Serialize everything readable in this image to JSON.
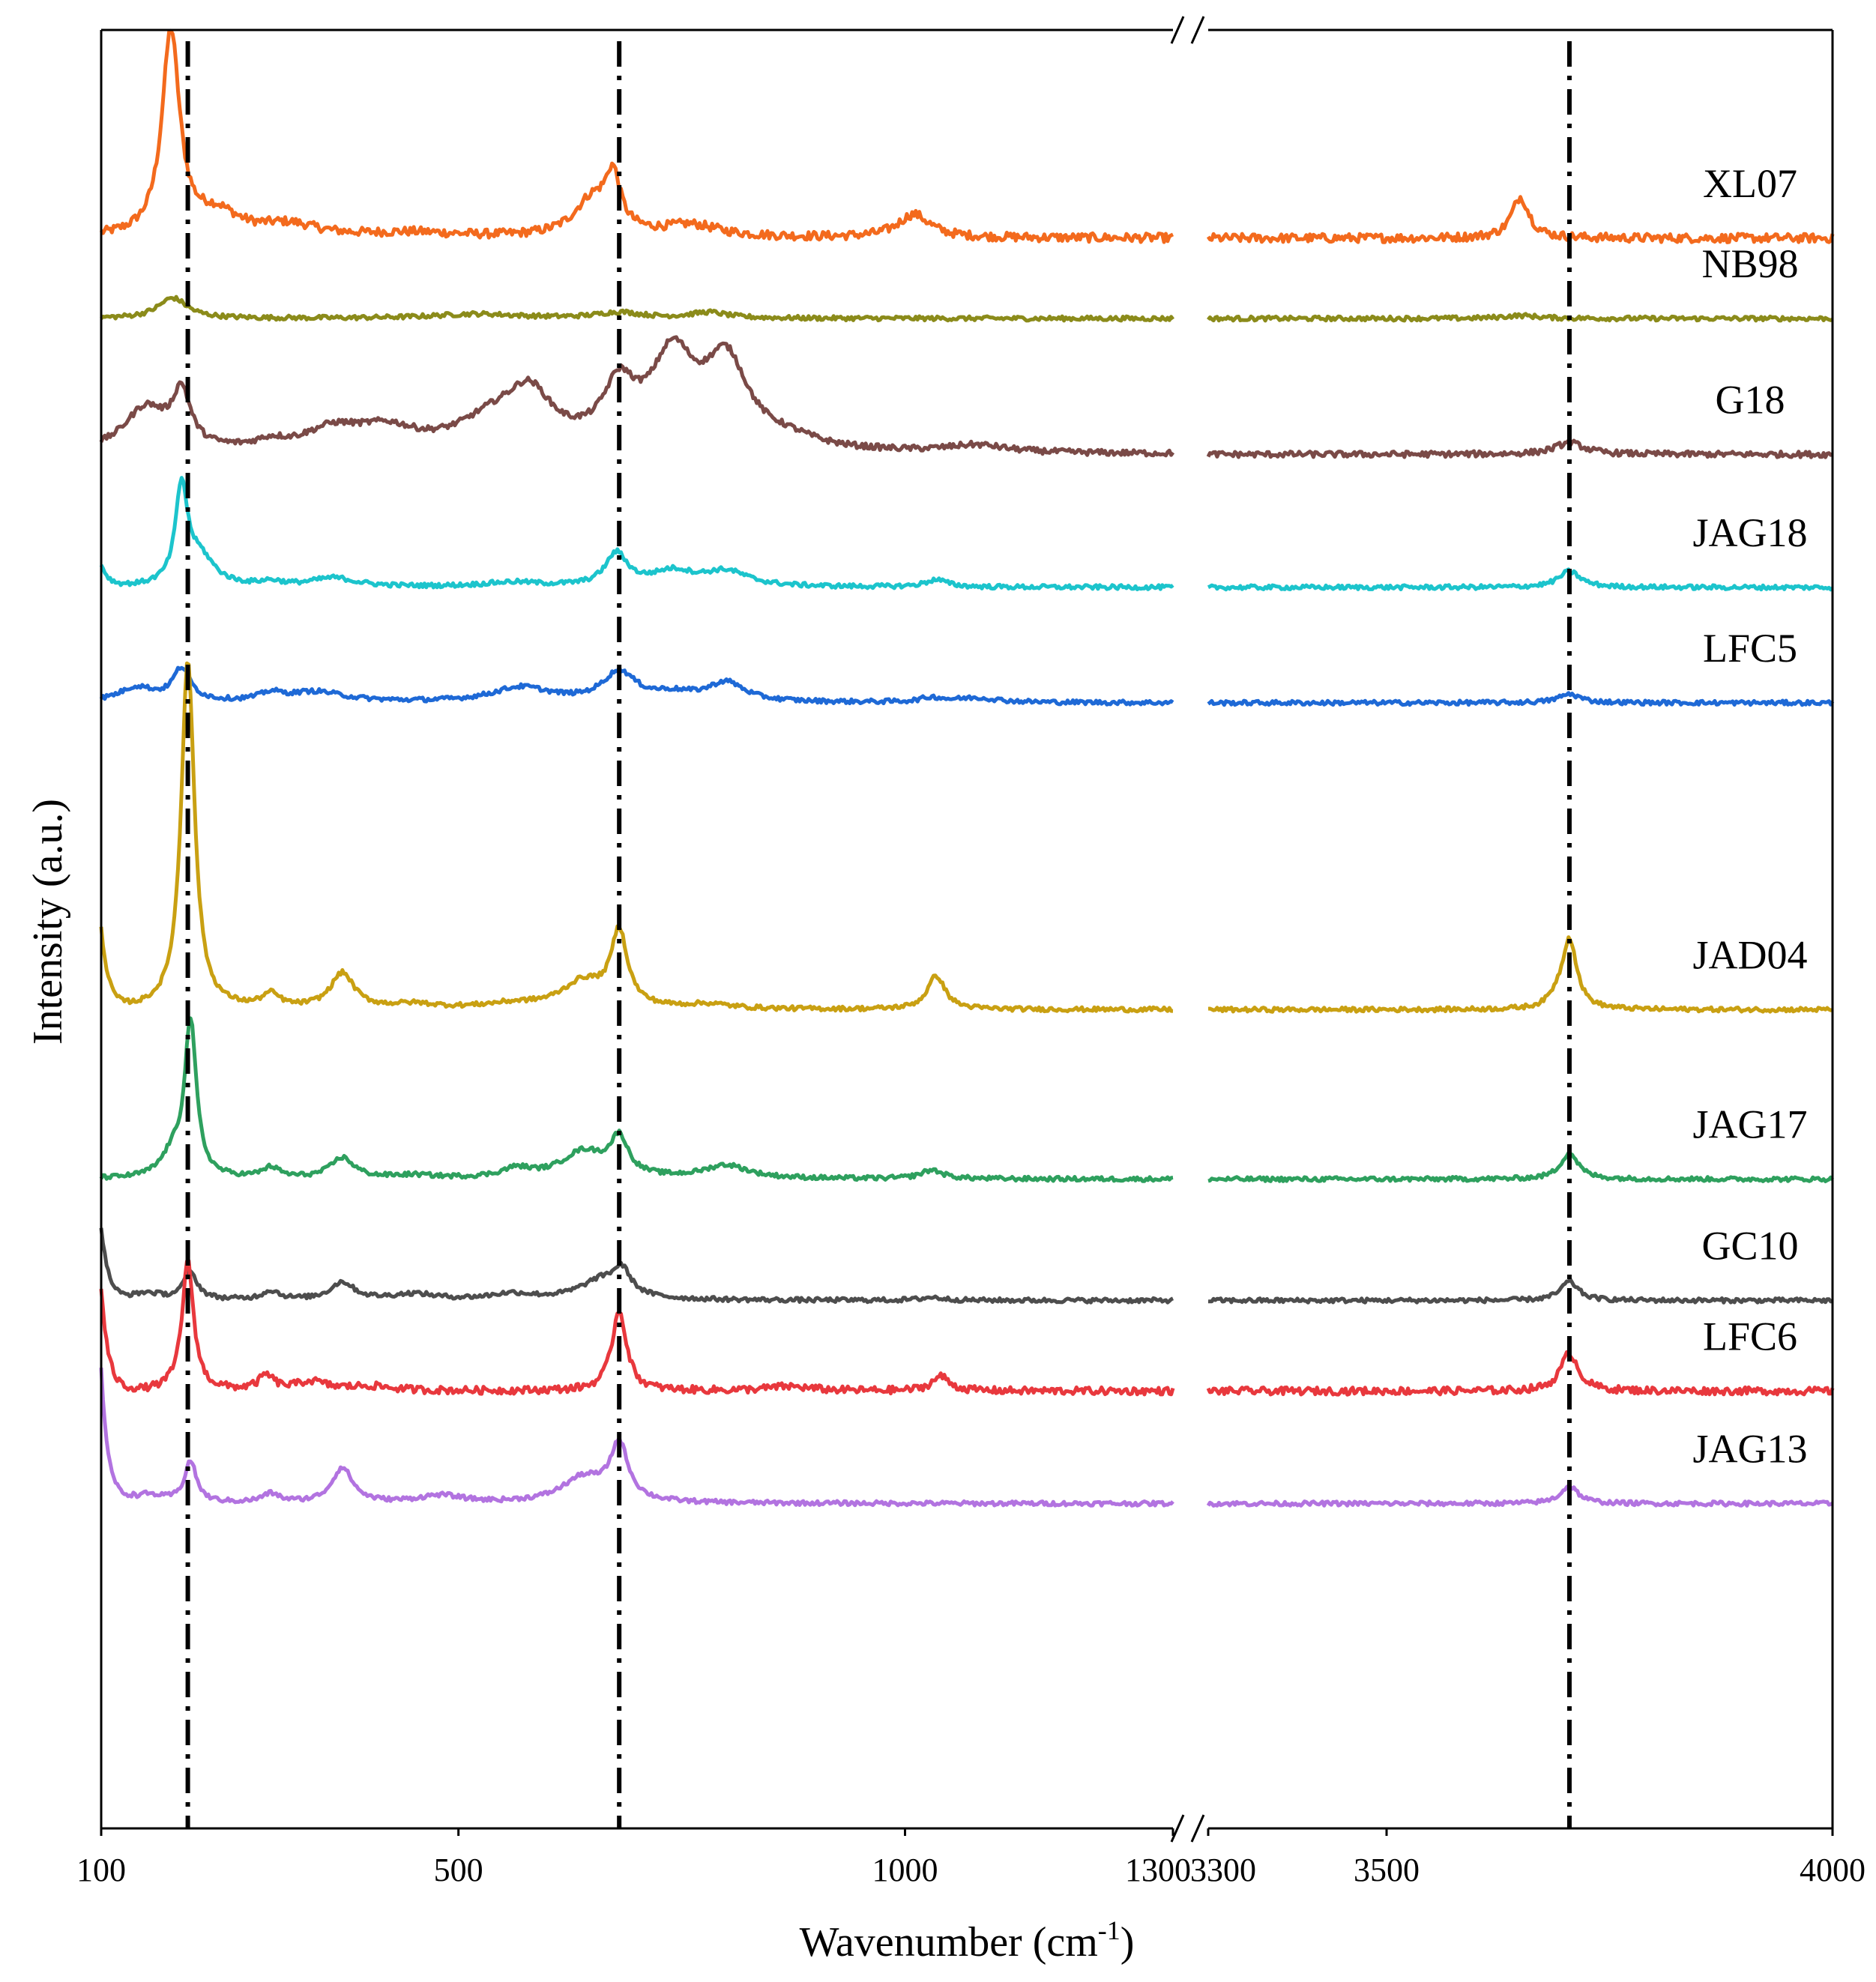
{
  "chart_data": {
    "type": "line",
    "title": "",
    "xlabel": "Wavenumber (cm",
    "xlabel_sup": "-1",
    "xlabel_close": ")",
    "ylabel": "Intensity (a.u.)",
    "x_segments": [
      {
        "xlim": [
          100,
          1300
        ],
        "ticks": [
          "100",
          "500",
          "1000",
          "1300"
        ]
      },
      {
        "xlim": [
          3300,
          4000
        ],
        "ticks": [
          "3300",
          "3500",
          "4000"
        ]
      }
    ],
    "reference_lines": [
      197,
      680,
      3705
    ],
    "series": [
      {
        "name": "XL07",
        "color": "#f36a1d",
        "baseline": 16.3,
        "noise": 0.3,
        "left_rise": 0,
        "peaks": [
          [
            178,
            13.9,
            12
          ],
          [
            230,
            1.5,
            30
          ],
          [
            310,
            0.8,
            40
          ],
          [
            450,
            0.3,
            60
          ],
          [
            650,
            2.5,
            25
          ],
          [
            673,
            3.5,
            10
          ],
          [
            760,
            0.8,
            40
          ],
          [
            1010,
            1.6,
            22
          ],
          [
            3650,
            2.8,
            12
          ]
        ]
      },
      {
        "name": "NB98",
        "color": "#8b8b1a",
        "baseline": 21.8,
        "noise": 0.15,
        "left_rise": 0,
        "peaks": [
          [
            180,
            1.4,
            20
          ],
          [
            520,
            0.3,
            60
          ],
          [
            680,
            0.4,
            30
          ],
          [
            780,
            0.4,
            25
          ],
          [
            3650,
            0.2,
            25
          ]
        ]
      },
      {
        "name": "G18",
        "color": "#7a4a47",
        "baseline": 31.1,
        "noise": 0.2,
        "left_rise": 0,
        "peaks": [
          [
            150,
            3.0,
            30
          ],
          [
            190,
            3.6,
            12
          ],
          [
            290,
            0.5,
            20
          ],
          [
            360,
            1.4,
            40
          ],
          [
            420,
            1.3,
            40
          ],
          [
            540,
            2.0,
            50
          ],
          [
            580,
            3.2,
            30
          ],
          [
            680,
            3.8,
            22
          ],
          [
            740,
            6.0,
            30
          ],
          [
            800,
            5.8,
            30
          ],
          [
            870,
            0.6,
            40
          ],
          [
            1080,
            0.5,
            40
          ],
          [
            3705,
            0.8,
            20
          ]
        ]
      },
      {
        "name": "JAG18",
        "color": "#1cc4cc",
        "baseline": 40.2,
        "noise": 0.15,
        "left_rise": 1.5,
        "peaks": [
          [
            190,
            6.5,
            8
          ],
          [
            210,
            2.0,
            20
          ],
          [
            290,
            0.3,
            15
          ],
          [
            360,
            0.6,
            30
          ],
          [
            560,
            0.3,
            40
          ],
          [
            677,
            2.2,
            15
          ],
          [
            740,
            1.0,
            30
          ],
          [
            800,
            1.0,
            30
          ],
          [
            1035,
            0.5,
            15
          ],
          [
            3705,
            1.1,
            15
          ]
        ]
      },
      {
        "name": "LFC5",
        "color": "#1e69d6",
        "baseline": 48.1,
        "noise": 0.15,
        "left_rise": 0,
        "peaks": [
          [
            140,
            1.0,
            25
          ],
          [
            190,
            2.2,
            12
          ],
          [
            290,
            0.5,
            15
          ],
          [
            340,
            0.7,
            40
          ],
          [
            570,
            1.0,
            40
          ],
          [
            680,
            2.0,
            22
          ],
          [
            740,
            0.5,
            30
          ],
          [
            800,
            1.3,
            25
          ],
          [
            1030,
            0.3,
            15
          ],
          [
            1080,
            0.3,
            30
          ],
          [
            3705,
            0.6,
            15
          ]
        ]
      },
      {
        "name": "JAD04",
        "color": "#c9a012",
        "baseline": 69.1,
        "noise": 0.15,
        "left_rise": 5.5,
        "peaks": [
          [
            197,
            24.0,
            9
          ],
          [
            290,
            0.9,
            12
          ],
          [
            370,
            2.4,
            16
          ],
          [
            450,
            0.3,
            30
          ],
          [
            560,
            0.3,
            40
          ],
          [
            640,
            1.8,
            30
          ],
          [
            680,
            5.0,
            11
          ],
          [
            780,
            0.3,
            30
          ],
          [
            1035,
            2.3,
            12
          ],
          [
            3690,
            0.5,
            10
          ],
          [
            3705,
            4.8,
            10
          ]
        ]
      },
      {
        "name": "JAG17",
        "color": "#2ea05e",
        "baseline": 80.7,
        "noise": 0.15,
        "left_rise": 0,
        "peaks": [
          [
            200,
            10.5,
            8
          ],
          [
            180,
            1.5,
            15
          ],
          [
            290,
            0.7,
            12
          ],
          [
            370,
            1.4,
            16
          ],
          [
            450,
            0.2,
            30
          ],
          [
            565,
            0.6,
            20
          ],
          [
            640,
            1.8,
            30
          ],
          [
            680,
            2.5,
            12
          ],
          [
            800,
            0.9,
            30
          ],
          [
            1030,
            0.6,
            15
          ],
          [
            3705,
            1.8,
            12
          ]
        ]
      },
      {
        "name": "GC10",
        "color": "#4d4d4d",
        "baseline": 89.0,
        "noise": 0.15,
        "left_rise": 5.0,
        "peaks": [
          [
            150,
            0.5,
            20
          ],
          [
            200,
            1.8,
            10
          ],
          [
            290,
            0.6,
            12
          ],
          [
            370,
            1.2,
            16
          ],
          [
            450,
            0.4,
            30
          ],
          [
            560,
            0.4,
            30
          ],
          [
            660,
            1.3,
            30
          ],
          [
            683,
            1.6,
            12
          ],
          [
            1030,
            0.2,
            15
          ],
          [
            3705,
            1.3,
            12
          ]
        ]
      },
      {
        "name": "LFC6",
        "color": "#e8383d",
        "baseline": 95.2,
        "noise": 0.25,
        "left_rise": 7.0,
        "peaks": [
          [
            197,
            8.8,
            8
          ],
          [
            285,
            1.0,
            10
          ],
          [
            335,
            0.6,
            20
          ],
          [
            400,
            0.3,
            30
          ],
          [
            680,
            5.5,
            10
          ],
          [
            870,
            0.3,
            30
          ],
          [
            1040,
            1.0,
            12
          ],
          [
            3705,
            2.6,
            12
          ]
        ]
      },
      {
        "name": "JAG13",
        "color": "#b273e0",
        "baseline": 102.9,
        "noise": 0.15,
        "left_rise": 9.0,
        "peaks": [
          [
            150,
            0.6,
            25
          ],
          [
            200,
            2.8,
            8
          ],
          [
            290,
            0.6,
            12
          ],
          [
            370,
            2.4,
            14
          ],
          [
            480,
            0.5,
            30
          ],
          [
            640,
            1.7,
            30
          ],
          [
            680,
            3.8,
            12
          ],
          [
            3705,
            1.2,
            12
          ]
        ]
      }
    ]
  }
}
